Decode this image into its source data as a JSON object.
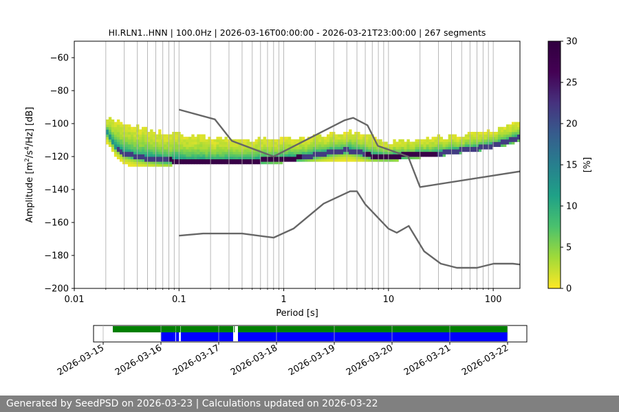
{
  "chart_data": [
    {
      "type": "heatmap",
      "title": "HI.RLN1..HNN | 100.0Hz | 2026-03-16T00:00:00 - 2026-03-21T23:00:00 | 267 segments",
      "xlabel": "Period [s]",
      "ylabel_parts": [
        "Amplitude [m",
        "2",
        "/s",
        "4",
        "/Hz] [dB]"
      ],
      "xscale": "log",
      "xlim": [
        0.01,
        180
      ],
      "ylim": [
        -200,
        -50
      ],
      "x_ticks": [
        0.01,
        0.1,
        1,
        10,
        100
      ],
      "x_tick_labels": [
        "0.01",
        "0.1",
        "1",
        "10",
        "100"
      ],
      "y_ticks": [
        -200,
        -180,
        -160,
        -140,
        -120,
        -100,
        -80,
        -60
      ],
      "y_tick_labels": [
        "−200",
        "−180",
        "−160",
        "−140",
        "−120",
        "−100",
        "−80",
        "−60"
      ],
      "grid": true,
      "colormap": "viridis_r",
      "colorbar": {
        "label": "[%]",
        "range": [
          0,
          30
        ],
        "ticks": [
          0,
          5,
          10,
          15,
          20,
          25,
          30
        ],
        "tick_labels": [
          "0",
          "5",
          "10",
          "15",
          "20",
          "25",
          "30"
        ]
      },
      "psd_distribution": {
        "period": [
          0.02,
          0.025,
          0.03,
          0.04,
          0.05,
          0.07,
          0.1,
          0.15,
          0.2,
          0.3,
          0.5,
          0.7,
          1,
          1.5,
          2,
          3,
          4,
          5,
          7,
          10,
          15,
          20,
          30,
          50,
          70,
          100,
          150,
          180
        ],
        "mode_db": [
          -104,
          -114,
          -118,
          -120,
          -121,
          -122,
          -122.5,
          -123,
          -123,
          -123,
          -122.5,
          -122,
          -121.5,
          -120.5,
          -119,
          -117,
          -116,
          -117,
          -119.5,
          -120,
          -119,
          -118.5,
          -118,
          -116,
          -115,
          -113,
          -110,
          -108
        ],
        "upper_db": [
          -96,
          -99,
          -101,
          -103,
          -104,
          -106,
          -107,
          -108,
          -109,
          -110,
          -110,
          -110,
          -110,
          -109,
          -108,
          -106,
          -105,
          -106,
          -109,
          -112,
          -111,
          -110,
          -109,
          -107,
          -106,
          -105,
          -102,
          -98
        ],
        "lower_db": [
          -118,
          -123,
          -125,
          -125,
          -125,
          -125,
          -124,
          -124,
          -124,
          -124,
          -124,
          -123.5,
          -123,
          -123,
          -122,
          -122,
          -122,
          -122,
          -122,
          -122,
          -121,
          -120,
          -119,
          -117,
          -116,
          -114,
          -112,
          -110
        ]
      },
      "nhnm": {
        "period": [
          0.1,
          0.22,
          0.32,
          0.8,
          3.8,
          4.6,
          6.3,
          7.9,
          15.4,
          20,
          180
        ],
        "db": [
          -91.5,
          -97.4,
          -110.5,
          -120,
          -98,
          -96.5,
          -101,
          -113.5,
          -120,
          -138.5,
          -129
        ]
      },
      "nlnm": {
        "period": [
          0.1,
          0.17,
          0.4,
          0.8,
          1.24,
          2.4,
          4.3,
          5,
          6,
          10,
          12,
          15.6,
          21.9,
          31.6,
          45,
          70,
          101,
          154,
          180
        ],
        "db": [
          -168,
          -166.7,
          -166.7,
          -169.2,
          -163.7,
          -148.6,
          -141.1,
          -141.1,
          -149,
          -163.8,
          -166.2,
          -162.1,
          -177.5,
          -185,
          -187.5,
          -187.5,
          -185,
          -185,
          -185.5
        ]
      }
    },
    {
      "type": "timeline",
      "x_tick_labels": [
        "2026-03-15",
        "2026-03-16",
        "2026-03-17",
        "2026-03-18",
        "2026-03-19",
        "2026-03-20",
        "2026-03-21",
        "2026-03-22"
      ],
      "xlim": [
        "2026-03-14T20:00",
        "2026-03-22T08:00"
      ],
      "colors": {
        "green": "#008000",
        "blue": "#0000ff"
      },
      "green_spans": [
        [
          "2026-03-15T04:00",
          "2026-03-16T06:00"
        ],
        [
          "2026-03-16T06:05",
          "2026-03-16T08:00"
        ],
        [
          "2026-03-16T08:10",
          "2026-03-17T06:00"
        ],
        [
          "2026-03-17T06:20",
          "2026-03-17T06:40"
        ],
        [
          "2026-03-17T08:00",
          "2026-03-22T00:00"
        ]
      ],
      "blue_spans": [
        [
          "2026-03-16T00:00",
          "2026-03-16T06:00"
        ],
        [
          "2026-03-16T06:15",
          "2026-03-16T07:30"
        ],
        [
          "2026-03-16T08:15",
          "2026-03-17T06:00"
        ],
        [
          "2026-03-17T08:00",
          "2026-03-22T00:00"
        ]
      ]
    }
  ],
  "footer": {
    "text": "Generated by SeedPSD on 2026-03-23 | Calculations updated on 2026-03-22"
  }
}
